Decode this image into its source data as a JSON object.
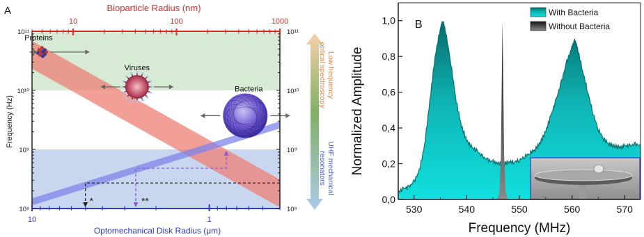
{
  "chart_data": [
    {
      "type": "line",
      "panel_label": "A",
      "top_axis": {
        "label": "Bioparticle Radius (nm)",
        "scale": "log",
        "range": [
          4,
          1000
        ],
        "ticks": [
          {
            "value": 10,
            "label": "10"
          },
          {
            "value": 100,
            "label": "100"
          },
          {
            "value": 1000,
            "label": "1000"
          }
        ],
        "color": "#e02a2a"
      },
      "bottom_axis": {
        "label": "Optomechanical Disk Radius (μm)",
        "scale": "log",
        "direction": "reversed",
        "range": [
          10,
          0.4
        ],
        "ticks": [
          {
            "value": 10,
            "label": "10"
          },
          {
            "value": 1,
            "label": "1"
          }
        ],
        "color": "#2a3acc"
      },
      "left_axis": {
        "label": "Frequency (Hz)",
        "scale": "log",
        "range": [
          100000000,
          100000000000
        ],
        "ticks": [
          {
            "value": 100000000,
            "label": "10⁸"
          },
          {
            "value": 1000000000,
            "label": "10⁹"
          },
          {
            "value": 10000000000,
            "label": "10¹⁰"
          },
          {
            "value": 100000000000,
            "label": "10¹¹"
          }
        ]
      },
      "right_axis_ticks": [
        "10¹¹",
        "10¹⁰",
        "10⁹",
        "10⁸"
      ],
      "regions": [
        {
          "label": "Low frequency optical spectroscopy",
          "range": [
            10000000000,
            100000000000
          ],
          "color": "#d7ead3"
        },
        {
          "label": "UHF mechanical resonators",
          "range": [
            100000000,
            1000000000
          ],
          "color": "#c9d6ef"
        }
      ],
      "side_labels": [
        "Low frequency optical spectroscopy",
        "UHF mechanical resonators"
      ],
      "bands": [
        {
          "name": "bioparticle",
          "color": "#ee7f74",
          "from": {
            "x_nm": 4,
            "y_hz": 40000000000
          },
          "to": {
            "x_nm": 1000,
            "y_hz": 180000000
          }
        },
        {
          "name": "optomechanical disk",
          "color": "#7d84ea",
          "from": {
            "x_um": 10,
            "y_hz": 130000000
          },
          "to": {
            "x_um": 0.4,
            "y_hz": 2600000000
          }
        }
      ],
      "particles": [
        {
          "label": "Proteins",
          "radius_nm": 5,
          "frequency_hz": 60000000000
        },
        {
          "label": "Viruses",
          "radius_nm": 50,
          "frequency_hz": 10000000000
        },
        {
          "label": "Bacteria",
          "radius_nm": 500,
          "frequency_hz": 3000000000
        }
      ],
      "annotations": [
        {
          "marker": "*",
          "disk_radius_um": 5,
          "frequency_hz": 270000000
        },
        {
          "marker": "**",
          "disk_radius_um": 2.6,
          "frequency_hz": 480000000
        }
      ]
    },
    {
      "type": "area",
      "panel_label": "B",
      "xlabel": "Frequency (MHz)",
      "ylabel": "Normalized Amplitude",
      "xlim": [
        527,
        573
      ],
      "ylim": [
        0,
        1.1
      ],
      "xticks": [
        530,
        540,
        550,
        560,
        570
      ],
      "yticks": [
        {
          "value": 0,
          "label": "0,0"
        },
        {
          "value": 0.2,
          "label": "0,2"
        },
        {
          "value": 0.4,
          "label": "0,4"
        },
        {
          "value": 0.6,
          "label": "0,6"
        },
        {
          "value": 0.8,
          "label": "0,8"
        },
        {
          "value": 1,
          "label": "1,0"
        }
      ],
      "legend_position": "top-right",
      "series": [
        {
          "name": "With Bacteria",
          "color": "#10c8c8",
          "x": [
            527,
            528,
            529,
            530,
            531,
            532,
            533,
            534,
            535,
            535.5,
            536,
            537,
            538,
            539,
            540,
            541,
            542,
            543,
            544,
            545,
            546,
            547,
            548,
            549,
            550,
            551,
            552,
            553,
            554,
            555,
            556,
            557,
            558,
            559,
            560,
            560.5,
            561,
            562,
            563,
            564,
            565,
            566,
            567,
            568,
            569,
            570,
            571,
            572,
            573
          ],
          "y": [
            0.04,
            0.06,
            0.07,
            0.1,
            0.16,
            0.3,
            0.55,
            0.8,
            0.96,
            1.0,
            0.94,
            0.76,
            0.55,
            0.41,
            0.33,
            0.29,
            0.27,
            0.24,
            0.22,
            0.21,
            0.2,
            0.2,
            0.21,
            0.21,
            0.22,
            0.24,
            0.26,
            0.28,
            0.32,
            0.38,
            0.47,
            0.56,
            0.66,
            0.77,
            0.85,
            0.89,
            0.85,
            0.72,
            0.6,
            0.48,
            0.39,
            0.34,
            0.31,
            0.3,
            0.29,
            0.3,
            0.3,
            0.31,
            0.3
          ]
        },
        {
          "name": "Without Bacteria",
          "color": "#555555",
          "x": [
            545.8,
            546.2,
            546.5,
            546.7,
            546.8,
            546.9,
            547.1,
            547.4,
            547.8
          ],
          "y": [
            0.0,
            0.04,
            0.25,
            0.75,
            1.0,
            0.75,
            0.25,
            0.04,
            0.0
          ]
        }
      ]
    }
  ]
}
